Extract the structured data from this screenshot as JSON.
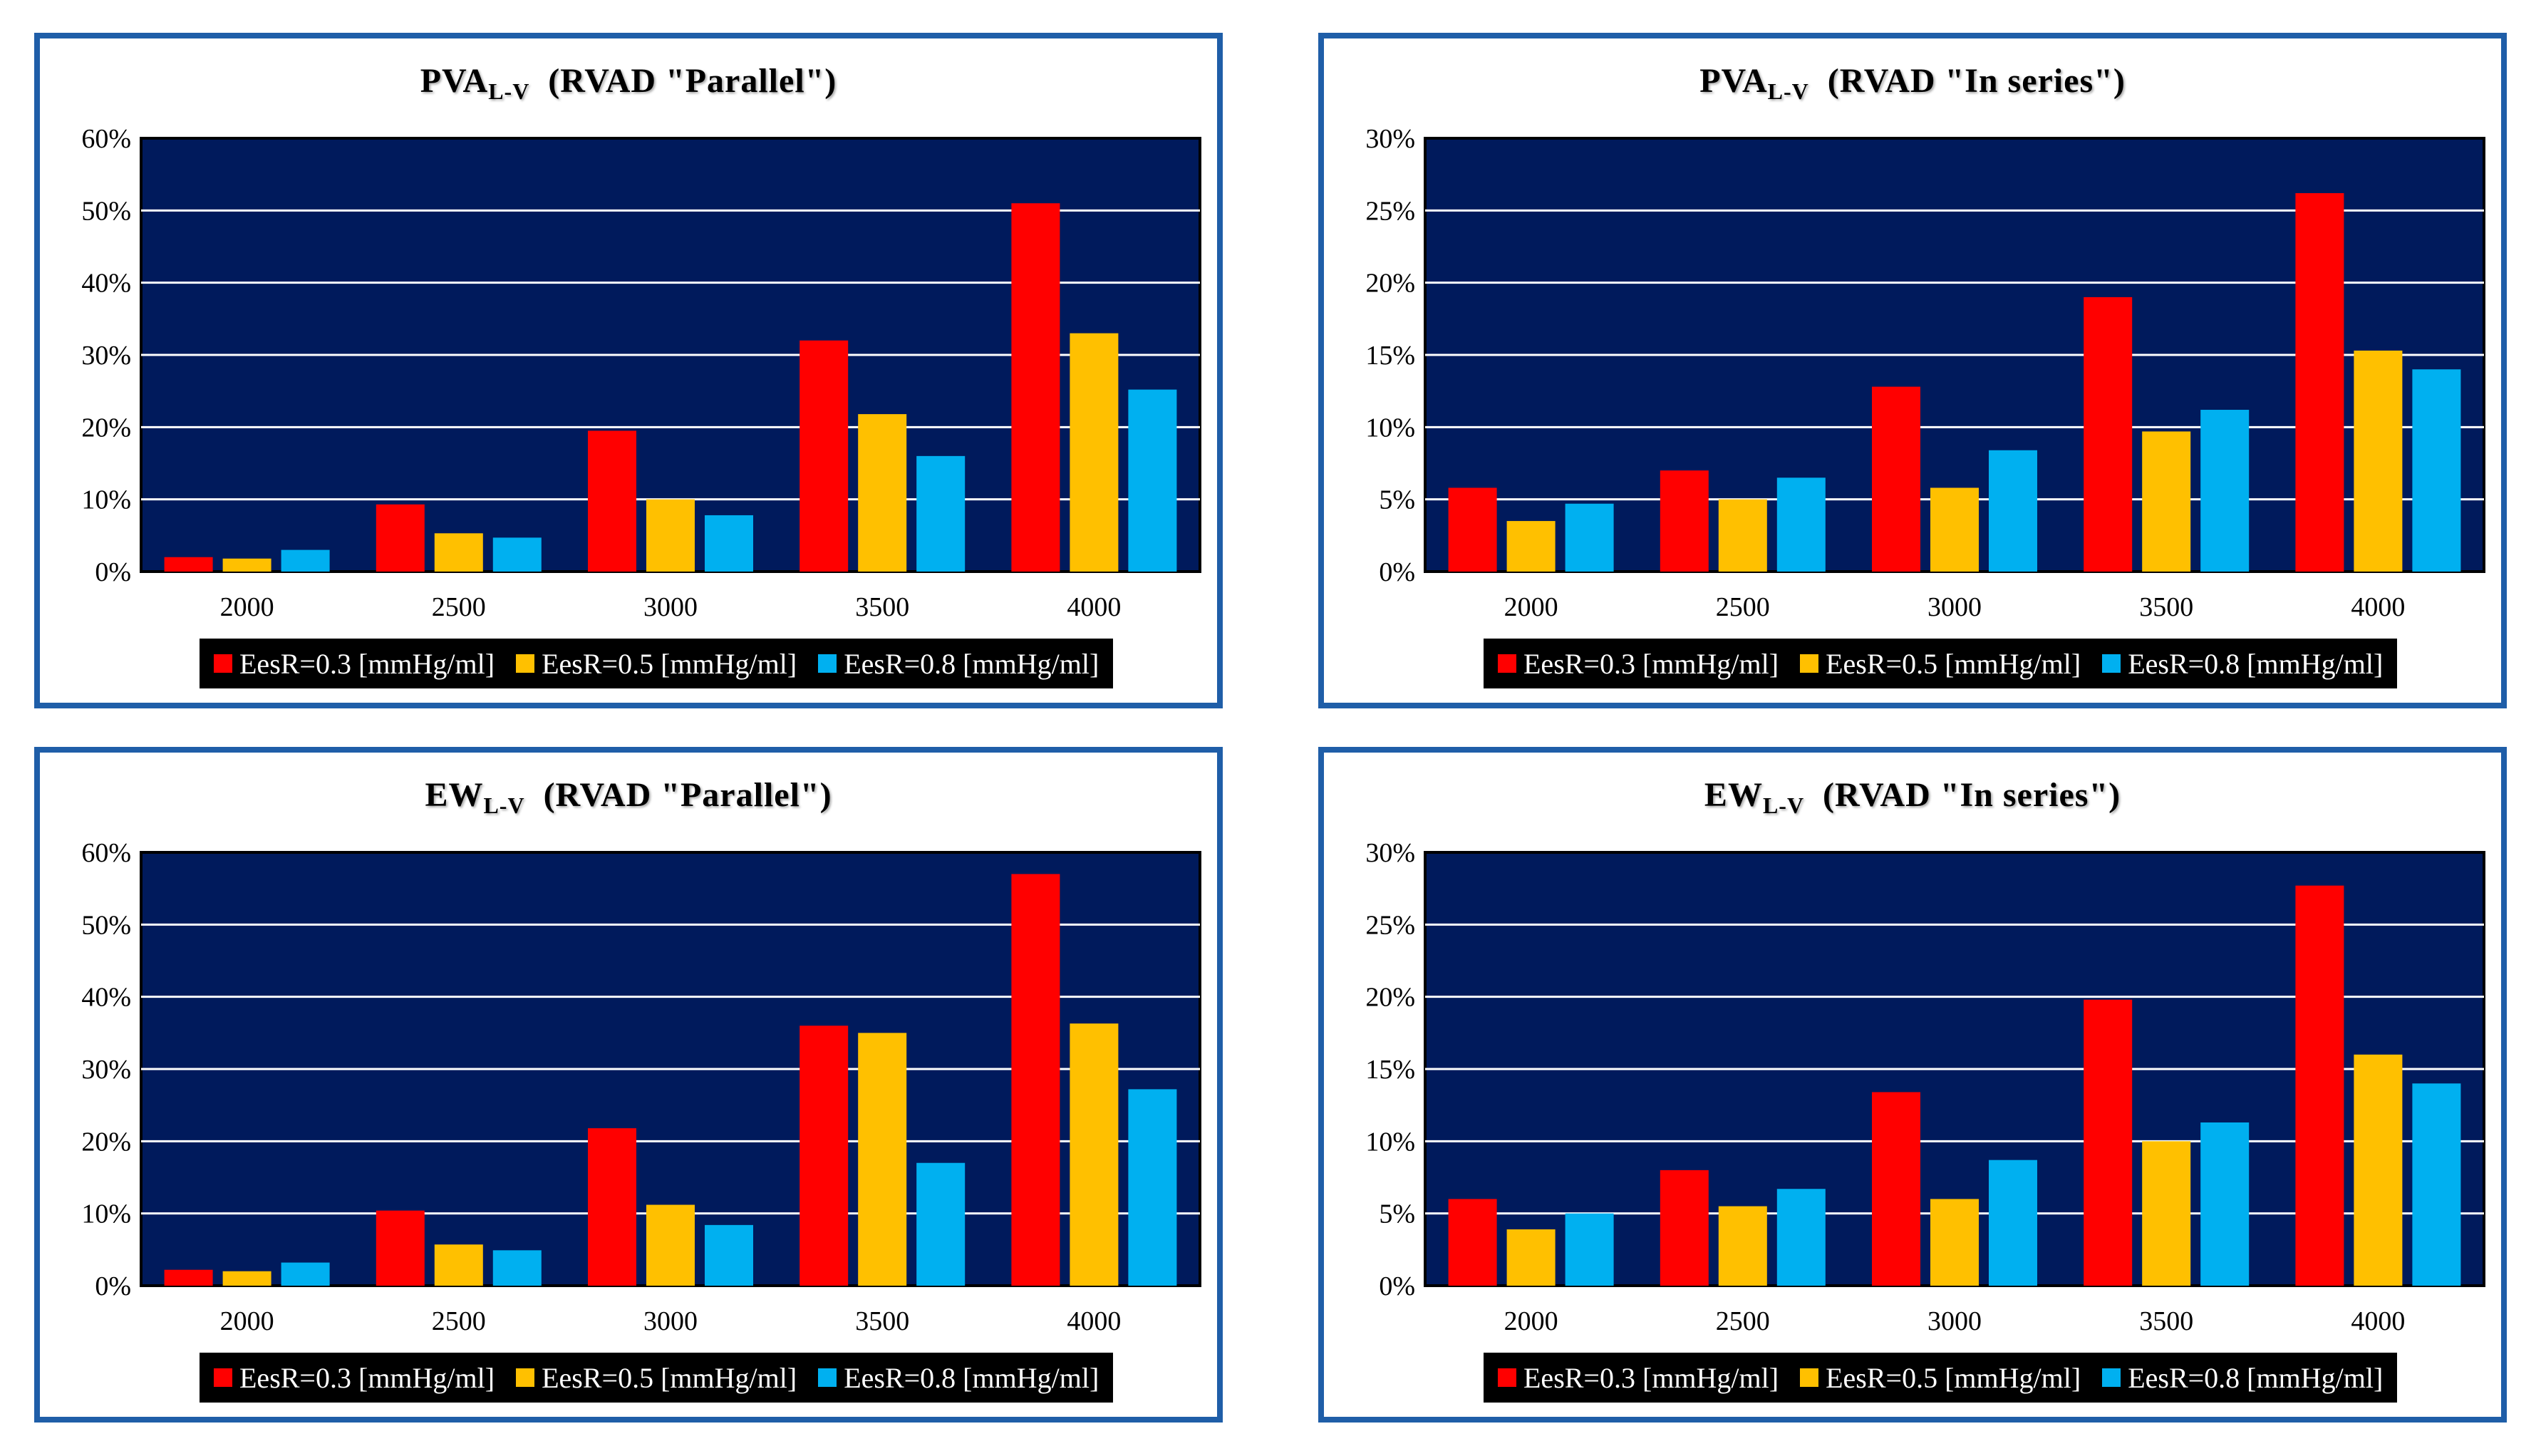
{
  "chart_data": [
    {
      "type": "bar",
      "title": "PVA",
      "title_sub": "L-V",
      "title_rest": "(RVAD \"Parallel\")",
      "categories": [
        "2000",
        "2500",
        "3000",
        "3500",
        "4000"
      ],
      "ylim": [
        0,
        60
      ],
      "yticks": [
        "0%",
        "10%",
        "20%",
        "30%",
        "40%",
        "50%",
        "60%"
      ],
      "series": [
        {
          "name": "EesR=0.3 [mmHg/ml]",
          "color": "#ff0000",
          "values": [
            2,
            9.3,
            19.5,
            32,
            51
          ]
        },
        {
          "name": "EesR=0.5 [mmHg/ml]",
          "color": "#ffc000",
          "values": [
            1.8,
            5.3,
            10,
            21.8,
            33
          ]
        },
        {
          "name": "EesR=0.8 [mmHg/ml]",
          "color": "#00b0f0",
          "values": [
            3,
            4.7,
            7.8,
            16,
            25.2
          ]
        }
      ],
      "grid": true,
      "legend_position": "bottom"
    },
    {
      "type": "bar",
      "title": "PVA",
      "title_sub": "L-V",
      "title_rest": "(RVAD \"In series\")",
      "categories": [
        "2000",
        "2500",
        "3000",
        "3500",
        "4000"
      ],
      "ylim": [
        0,
        30
      ],
      "yticks": [
        "0%",
        "5%",
        "10%",
        "15%",
        "20%",
        "25%",
        "30%"
      ],
      "series": [
        {
          "name": "EesR=0.3 [mmHg/ml]",
          "color": "#ff0000",
          "values": [
            5.8,
            7,
            12.8,
            19,
            26.2
          ]
        },
        {
          "name": "EesR=0.5 [mmHg/ml]",
          "color": "#ffc000",
          "values": [
            3.5,
            5,
            5.8,
            9.7,
            15.3
          ]
        },
        {
          "name": "EesR=0.8 [mmHg/ml]",
          "color": "#00b0f0",
          "values": [
            4.7,
            6.5,
            8.4,
            11.2,
            14
          ]
        }
      ],
      "grid": true,
      "legend_position": "bottom"
    },
    {
      "type": "bar",
      "title": "EW",
      "title_sub": "L-V",
      "title_rest": "(RVAD \"Parallel\")",
      "categories": [
        "2000",
        "2500",
        "3000",
        "3500",
        "4000"
      ],
      "ylim": [
        0,
        60
      ],
      "yticks": [
        "0%",
        "10%",
        "20%",
        "30%",
        "40%",
        "50%",
        "60%"
      ],
      "series": [
        {
          "name": "EesR=0.3 [mmHg/ml]",
          "color": "#ff0000",
          "values": [
            2.2,
            10.4,
            21.8,
            36,
            57
          ]
        },
        {
          "name": "EesR=0.5 [mmHg/ml]",
          "color": "#ffc000",
          "values": [
            2,
            5.7,
            11.2,
            35,
            36.3
          ]
        },
        {
          "name": "EesR=0.8 [mmHg/ml]",
          "color": "#00b0f0",
          "values": [
            3.2,
            4.9,
            8.4,
            17,
            27.2
          ]
        }
      ],
      "grid": true,
      "legend_position": "bottom"
    },
    {
      "type": "bar",
      "title": "EW",
      "title_sub": "L-V",
      "title_rest": "(RVAD \"In series\")",
      "categories": [
        "2000",
        "2500",
        "3000",
        "3500",
        "4000"
      ],
      "ylim": [
        0,
        30
      ],
      "yticks": [
        "0%",
        "5%",
        "10%",
        "15%",
        "20%",
        "25%",
        "30%"
      ],
      "series": [
        {
          "name": "EesR=0.3 [mmHg/ml]",
          "color": "#ff0000",
          "values": [
            6,
            8,
            13.4,
            19.8,
            27.7
          ]
        },
        {
          "name": "EesR=0.5 [mmHg/ml]",
          "color": "#ffc000",
          "values": [
            3.9,
            5.5,
            6,
            10,
            16
          ]
        },
        {
          "name": "EesR=0.8 [mmHg/ml]",
          "color": "#00b0f0",
          "values": [
            5,
            6.7,
            8.7,
            11.3,
            14
          ]
        }
      ],
      "grid": true,
      "legend_position": "bottom"
    }
  ],
  "colors": {
    "plot_background": "#001a5c",
    "panel_border": "#1f5ea8",
    "legend_background": "#000000"
  }
}
